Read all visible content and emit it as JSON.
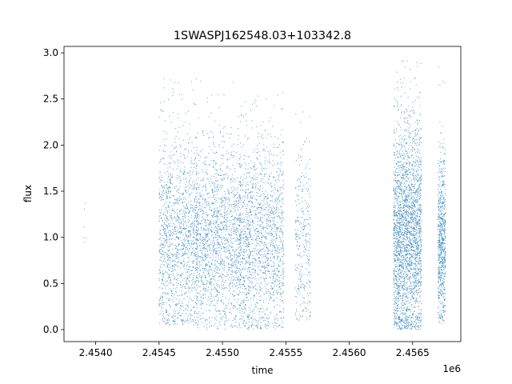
{
  "chart_data": {
    "type": "scatter",
    "title": "1SWASPJ162548.03+103342.8",
    "xlabel": "time",
    "ylabel": "flux",
    "x_offset_label": "1e6",
    "xlim": [
      2.45375,
      2.45688
    ],
    "ylim": [
      -0.13,
      3.07
    ],
    "x_ticks": [
      2.454,
      2.4545,
      2.455,
      2.4555,
      2.456,
      2.4565
    ],
    "x_tick_labels": [
      "2.4540",
      "2.4545",
      "2.4550",
      "2.4555",
      "2.4560",
      "2.4565"
    ],
    "y_ticks": [
      0.0,
      0.5,
      1.0,
      1.5,
      2.0,
      2.5,
      3.0
    ],
    "y_tick_labels": [
      "0.0",
      "0.5",
      "1.0",
      "1.5",
      "2.0",
      "2.5",
      "3.0"
    ],
    "grid": false,
    "legend": "none",
    "marker_color": "#1f77b4",
    "clusters": [
      {
        "x_center": 2.453915,
        "x_width": 2e-05,
        "y_center": 1.2,
        "y_spread": 0.3,
        "count": 6,
        "y_min": 0.9,
        "y_max": 1.5
      },
      {
        "x_center": 2.45465,
        "x_width": 0.0003,
        "y_center": 1.0,
        "y_spread": 0.55,
        "count": 1400,
        "y_min": 0.05,
        "y_max": 2.75
      },
      {
        "x_center": 2.45497,
        "x_width": 0.00035,
        "y_center": 0.95,
        "y_spread": 0.5,
        "count": 1600,
        "y_min": 0.0,
        "y_max": 2.7
      },
      {
        "x_center": 2.45531,
        "x_width": 0.00035,
        "y_center": 0.95,
        "y_spread": 0.55,
        "count": 1600,
        "y_min": 0.0,
        "y_max": 2.6
      },
      {
        "x_center": 2.455635,
        "x_width": 0.00012,
        "y_center": 0.95,
        "y_spread": 0.5,
        "count": 300,
        "y_min": 0.1,
        "y_max": 2.5
      },
      {
        "x_center": 2.45646,
        "x_width": 0.00022,
        "y_center": 1.0,
        "y_spread": 0.6,
        "count": 2600,
        "y_min": 0.0,
        "y_max": 2.92
      },
      {
        "x_center": 2.45673,
        "x_width": 6e-05,
        "y_center": 0.95,
        "y_spread": 0.45,
        "count": 700,
        "y_min": 0.05,
        "y_max": 2.85
      }
    ]
  }
}
